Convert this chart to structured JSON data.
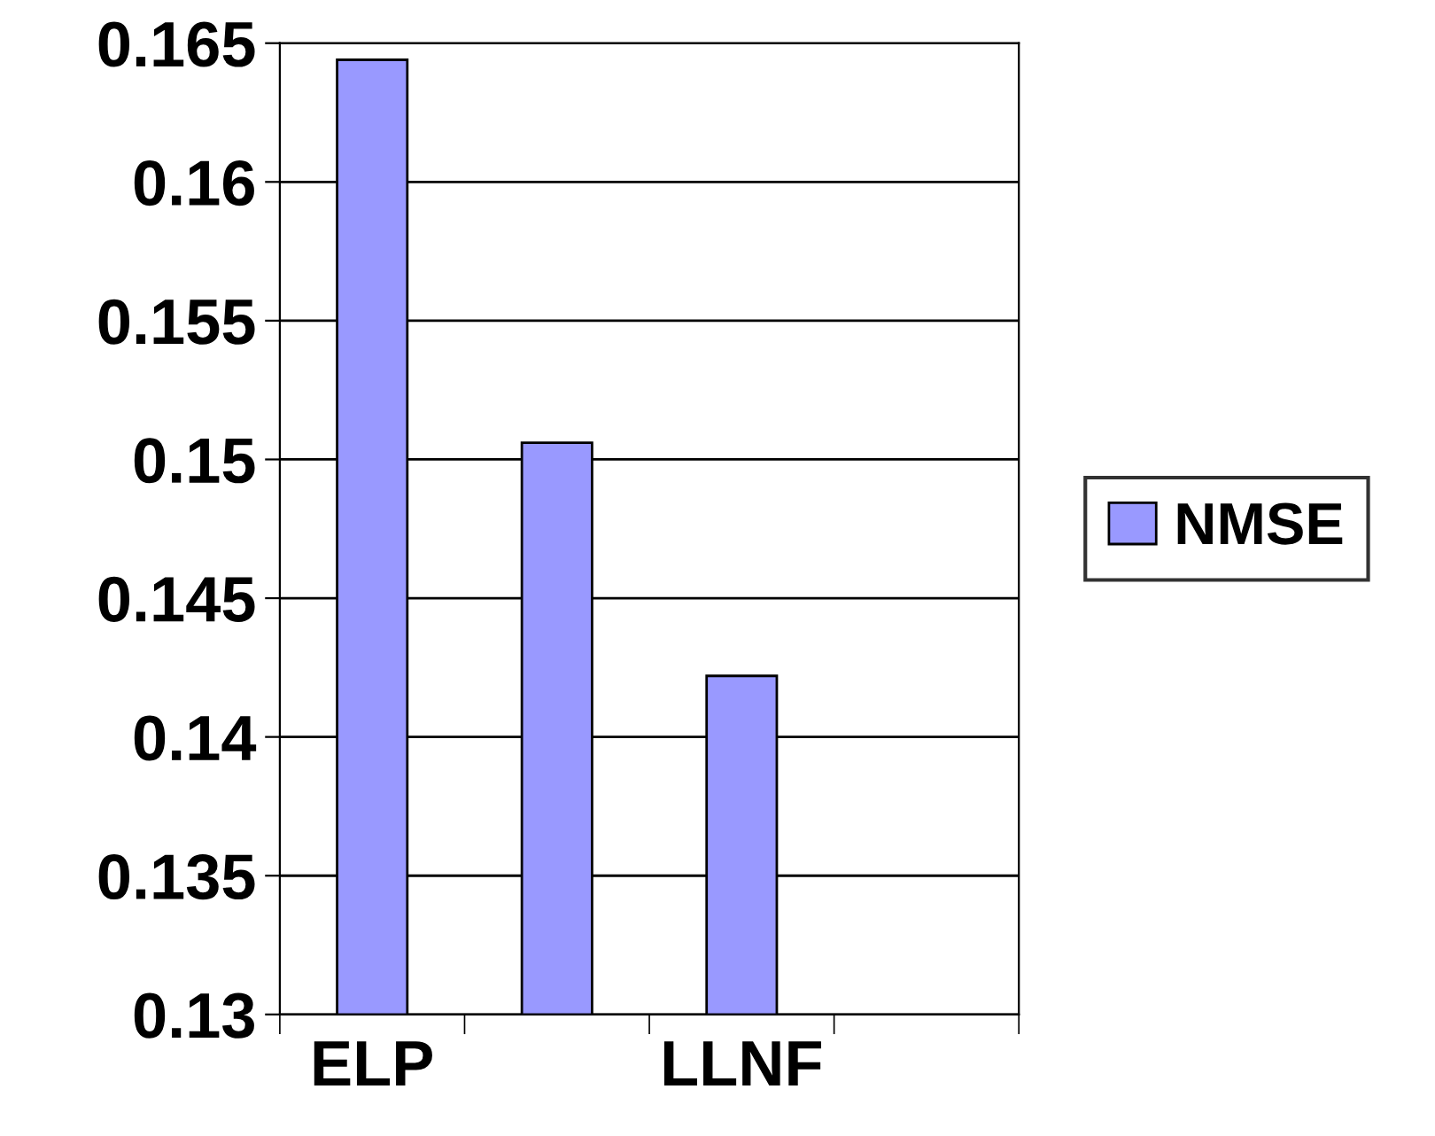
{
  "chart_data": {
    "type": "bar",
    "categories": [
      "ELP",
      null,
      "LLNF",
      null
    ],
    "series": [
      {
        "name": "NMSE",
        "color": "#9999ff",
        "values": [
          0.1644,
          0.1506,
          0.1422,
          null
        ]
      }
    ],
    "ylim": [
      0.13,
      0.165
    ],
    "yticks": [
      0.13,
      0.135,
      0.14,
      0.145,
      0.15,
      0.155,
      0.16,
      0.165
    ],
    "grid": "y",
    "legend": "right"
  }
}
